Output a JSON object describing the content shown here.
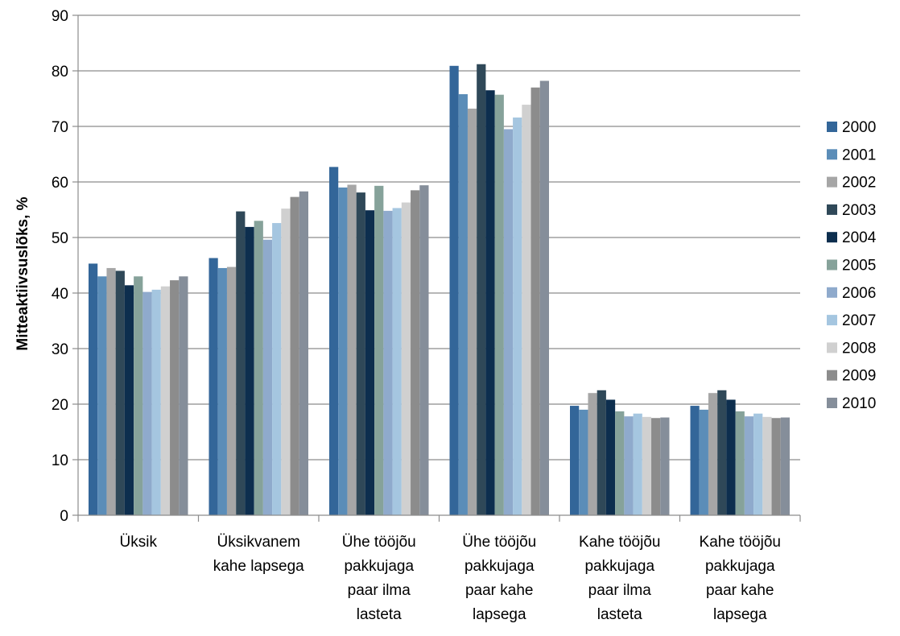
{
  "chart_data": {
    "type": "bar",
    "title": "",
    "xlabel": "",
    "ylabel": "Mitteaktiivsuslõks, %",
    "ylim": [
      0,
      90
    ],
    "yticks": [
      0,
      10,
      20,
      30,
      40,
      50,
      60,
      70,
      80,
      90
    ],
    "grid": true,
    "legend_position": "right",
    "categories": [
      [
        "Üksik"
      ],
      [
        "Üksikvanem",
        "kahe lapsega"
      ],
      [
        "Ühe tööjõu",
        "pakkujaga",
        "paar ilma",
        "lasteta"
      ],
      [
        "Ühe tööjõu",
        "pakkujaga",
        "paar kahe",
        "lapsega"
      ],
      [
        "Kahe tööjõu",
        "pakkujaga",
        "paar ilma",
        "lasteta"
      ],
      [
        "Kahe tööjõu",
        "pakkujaga",
        "paar kahe",
        "lapsega"
      ]
    ],
    "series": [
      {
        "name": "2000",
        "color": "#336699",
        "values": [
          45.3,
          46.3,
          62.7,
          80.9,
          19.7,
          19.7
        ]
      },
      {
        "name": "2001",
        "color": "#5B8DB8",
        "values": [
          43.0,
          44.5,
          59.0,
          75.8,
          19.0,
          19.0
        ]
      },
      {
        "name": "2002",
        "color": "#A6A6A6",
        "values": [
          44.5,
          44.7,
          59.5,
          73.2,
          22.0,
          22.0
        ]
      },
      {
        "name": "2003",
        "color": "#2F4858",
        "values": [
          44.0,
          54.7,
          58.1,
          81.2,
          22.5,
          22.5
        ]
      },
      {
        "name": "2004",
        "color": "#0D2E4E",
        "values": [
          41.4,
          51.9,
          54.9,
          76.5,
          20.8,
          20.8
        ]
      },
      {
        "name": "2005",
        "color": "#86A29A",
        "values": [
          43.0,
          53.0,
          59.3,
          75.7,
          18.7,
          18.7
        ]
      },
      {
        "name": "2006",
        "color": "#8FAACC",
        "values": [
          40.2,
          49.6,
          54.8,
          69.5,
          17.8,
          17.8
        ]
      },
      {
        "name": "2007",
        "color": "#A5C6E0",
        "values": [
          40.6,
          52.6,
          55.3,
          71.6,
          18.3,
          18.3
        ]
      },
      {
        "name": "2008",
        "color": "#D0D0D0",
        "values": [
          41.2,
          55.2,
          56.3,
          73.9,
          17.7,
          17.7
        ]
      },
      {
        "name": "2009",
        "color": "#8C8C8C",
        "values": [
          42.3,
          57.3,
          58.5,
          77.0,
          17.5,
          17.5
        ]
      },
      {
        "name": "2010",
        "color": "#858E9A",
        "values": [
          43.0,
          58.3,
          59.4,
          78.2,
          17.6,
          17.6
        ]
      }
    ]
  }
}
